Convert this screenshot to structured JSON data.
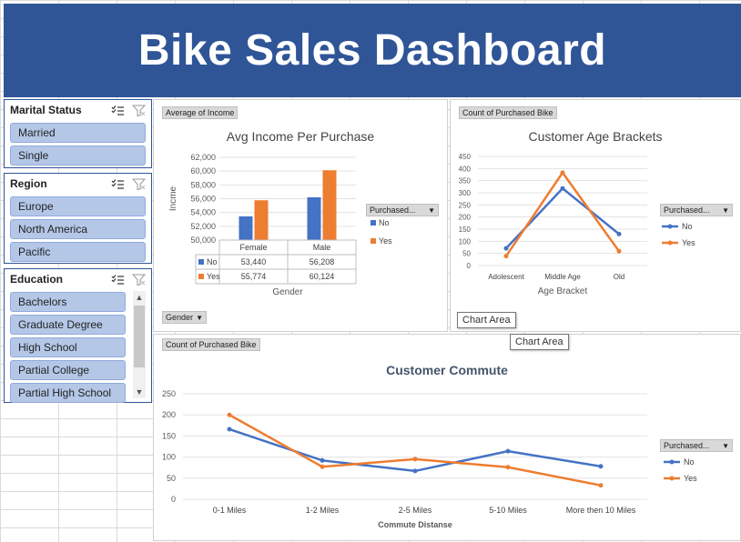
{
  "dashboard": {
    "title": "Bike Sales Dashboard"
  },
  "slicers": {
    "marital": {
      "title": "Marital Status",
      "items": [
        "Married",
        "Single"
      ]
    },
    "region": {
      "title": "Region",
      "items": [
        "Europe",
        "North America",
        "Pacific"
      ]
    },
    "education": {
      "title": "Education",
      "items": [
        "Bachelors",
        "Graduate Degree",
        "High School",
        "Partial College",
        "Partial High School"
      ]
    }
  },
  "icons": {
    "multiselect": "multi-select-icon",
    "clear_filter": "clear-filter-icon",
    "dropdown": "dropdown-arrow-icon"
  },
  "colors": {
    "banner": "#2f5597",
    "no": "#4472c4",
    "yes": "#ed7d31",
    "slicer_item": "#b4c7e7"
  },
  "panels": {
    "income": {
      "field": "Average of Income",
      "axis_field": "Gender",
      "legend_field": "Purchased..."
    },
    "age": {
      "field": "Count of Purchased Bike"
    },
    "commute": {
      "field": "Count of Purchased Bike",
      "legend_field": "Purchased..."
    }
  },
  "tooltips": {
    "chart_area_1": "Chart Area",
    "chart_area_2": "Chart Area"
  },
  "chart_data": [
    {
      "type": "bar",
      "title": "Avg Income Per Purchase",
      "xlabel": "Gender",
      "ylabel": "Incme",
      "categories": [
        "Female",
        "Male"
      ],
      "series": [
        {
          "name": "No",
          "values": [
            53440,
            56208
          ],
          "labels": [
            "53,440",
            "56,208"
          ]
        },
        {
          "name": "Yes",
          "values": [
            55774,
            60124
          ],
          "labels": [
            "55,774",
            "60,124"
          ]
        }
      ],
      "ylim": [
        50000,
        62000
      ],
      "yticks": [
        "50,000",
        "52,000",
        "54,000",
        "56,000",
        "58,000",
        "60,000",
        "62,000"
      ],
      "data_table": true,
      "legend": "right"
    },
    {
      "type": "line",
      "title": "Customer Age Brackets",
      "xlabel": "Age Bracket",
      "categories": [
        "Adolescent",
        "Middle Age",
        "Old"
      ],
      "series": [
        {
          "name": "No",
          "values": [
            71,
            318,
            130
          ]
        },
        {
          "name": "Yes",
          "values": [
            39,
            383,
            59
          ]
        }
      ],
      "ylim": [
        0,
        450
      ],
      "yticks": [
        "0",
        "50",
        "100",
        "150",
        "200",
        "250",
        "300",
        "350",
        "400",
        "450"
      ],
      "legend": "right"
    },
    {
      "type": "line",
      "title": "Customer Commute",
      "xlabel": "Commute Distanse",
      "categories": [
        "0-1 Miles",
        "1-2 Miles",
        "2-5 Miles",
        "5-10 Miles",
        "More then 10 Miles"
      ],
      "series": [
        {
          "name": "No",
          "values": [
            166,
            92,
            67,
            114,
            78
          ]
        },
        {
          "name": "Yes",
          "values": [
            200,
            77,
            95,
            76,
            33
          ]
        }
      ],
      "ylim": [
        0,
        250
      ],
      "yticks": [
        "0",
        "50",
        "100",
        "150",
        "200",
        "250"
      ],
      "legend": "right"
    }
  ]
}
